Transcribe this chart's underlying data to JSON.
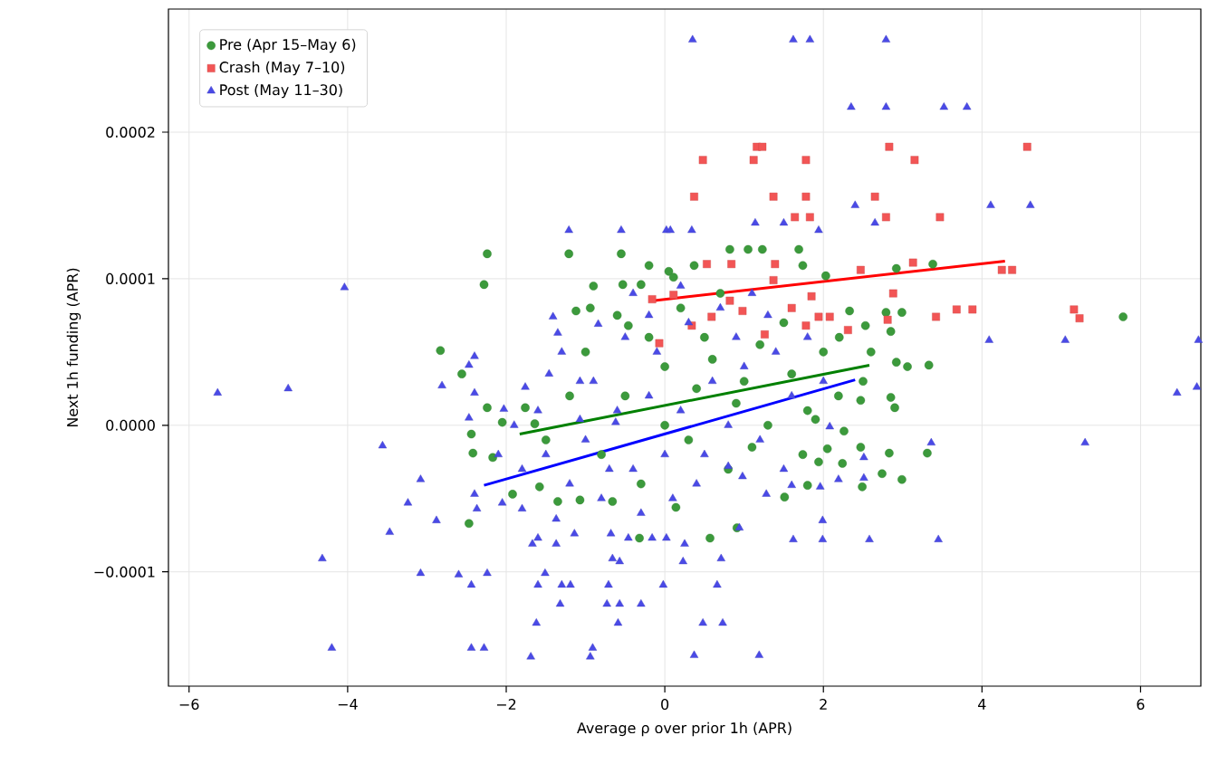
{
  "chart_data": {
    "type": "scatter",
    "xlabel": "Average ρ over prior 1h (APR)",
    "ylabel": "Next 1h funding (APR)",
    "xlim": [
      -6.26,
      6.76
    ],
    "ylim": [
      -0.000178,
      0.000284
    ],
    "xticks": [
      {
        "value": -6,
        "label": "−6"
      },
      {
        "value": -4,
        "label": "−4"
      },
      {
        "value": -2,
        "label": "−2"
      },
      {
        "value": 0,
        "label": "0"
      },
      {
        "value": 2,
        "label": "2"
      },
      {
        "value": 4,
        "label": "4"
      },
      {
        "value": 6,
        "label": "6"
      }
    ],
    "yticks": [
      {
        "value": -0.0001,
        "label": "−0.0001"
      },
      {
        "value": 0,
        "label": "0.0000"
      },
      {
        "value": 0.0001,
        "label": "0.0001"
      },
      {
        "value": 0.0002,
        "label": "0.0002"
      }
    ],
    "grid": true,
    "legend": "top left",
    "series": [
      {
        "name": "Pre (Apr 15–May 6)",
        "color": "#3c9a3c",
        "marker": "circle",
        "x": [
          -2.24,
          -1.21,
          -0.55,
          -2.28,
          -0.53,
          -0.3,
          -0.2,
          0.05,
          -2.83,
          -1.12,
          -0.94,
          -0.46,
          0.82,
          1.05,
          1.23,
          1.69,
          1.74,
          3.38,
          5.78,
          2.92,
          2.79,
          2.99,
          2.33,
          2.53,
          2.85,
          2.03,
          0.37,
          0.11,
          3.33,
          2.92,
          3.06,
          2.85,
          2.9,
          2.47,
          2.19,
          1.9,
          2.26,
          2.47,
          2.83,
          3.31,
          2.05,
          1.74,
          1.94,
          2.24,
          2.74,
          2.99,
          2.49,
          1.8,
          1.51,
          0.91,
          0.57,
          -2.56,
          -2.24,
          -2.44,
          -2.42,
          -2.17,
          -2.47,
          -1.92,
          -1.58,
          -1.35,
          -2.05,
          -1.76,
          -1.64,
          -1.07,
          -0.66,
          -0.32,
          0.14,
          -1,
          -0.5,
          0,
          0.5,
          1,
          1.5,
          2,
          2.5,
          -0.8,
          -0.3,
          0.3,
          0.8,
          1.3,
          1.8,
          0.2,
          0.7,
          1.2,
          -0.6,
          -1.2,
          0,
          0.4,
          1.6,
          2.2,
          -0.2,
          0.9,
          1.1,
          -1.5,
          0.6,
          2.6,
          -0.9
        ],
        "values": [
          0.000117,
          0.000117,
          0.000117,
          9.6e-05,
          9.6e-05,
          9.6e-05,
          0.000109,
          0.000105,
          5.1e-05,
          7.8e-05,
          8e-05,
          6.8e-05,
          0.00012,
          0.00012,
          0.00012,
          0.00012,
          0.000109,
          0.00011,
          7.4e-05,
          0.000107,
          7.7e-05,
          7.7e-05,
          7.8e-05,
          6.8e-05,
          6.4e-05,
          0.000102,
          0.000109,
          0.000101,
          4.1e-05,
          4.3e-05,
          4e-05,
          1.9e-05,
          1.2e-05,
          1.7e-05,
          2e-05,
          4e-06,
          -4e-06,
          -1.5e-05,
          -1.9e-05,
          -1.9e-05,
          -1.6e-05,
          -2e-05,
          -2.5e-05,
          -2.6e-05,
          -3.3e-05,
          -3.7e-05,
          -4.2e-05,
          -4.1e-05,
          -4.9e-05,
          -7e-05,
          -7.7e-05,
          3.5e-05,
          1.2e-05,
          -6e-06,
          -1.9e-05,
          -2.2e-05,
          -6.7e-05,
          -4.7e-05,
          -4.2e-05,
          -5.2e-05,
          2e-06,
          1.2e-05,
          1e-06,
          -5.1e-05,
          -5.2e-05,
          -7.7e-05,
          -5.6e-05,
          5e-05,
          2e-05,
          4e-05,
          6e-05,
          3e-05,
          7e-05,
          5e-05,
          3e-05,
          -2e-05,
          -4e-05,
          -1e-05,
          -3e-05,
          0,
          1e-05,
          8e-05,
          9e-05,
          5.5e-05,
          7.5e-05,
          2e-05,
          0,
          2.5e-05,
          3.5e-05,
          6e-05,
          6e-05,
          1.5e-05,
          -1.5e-05,
          -1e-05,
          4.5e-05,
          5e-05,
          9.5e-05
        ]
      },
      {
        "name": "Crash (May 7–10)",
        "color": "#f25555",
        "marker": "square",
        "x": [
          1.16,
          1.23,
          0.48,
          1.12,
          1.78,
          2.83,
          3.15,
          4.57,
          0.37,
          1.37,
          1.78,
          2.65,
          1.64,
          1.83,
          2.79,
          3.47,
          3.13,
          4.25,
          4.38,
          0.53,
          0.84,
          1.39,
          2.47,
          3.68,
          3.88,
          5.16,
          5.23,
          2.81,
          3.42,
          2.88,
          0.34,
          0.82,
          1.37,
          1.85,
          1.94,
          2.08,
          1.78,
          0.98,
          1.6,
          0.11,
          0.59,
          1.26,
          2.31,
          -0.16,
          -0.07
        ],
        "values": [
          0.00019,
          0.00019,
          0.000181,
          0.000181,
          0.000181,
          0.00019,
          0.000181,
          0.00019,
          0.000156,
          0.000156,
          0.000156,
          0.000156,
          0.000142,
          0.000142,
          0.000142,
          0.000142,
          0.000111,
          0.000106,
          0.000106,
          0.00011,
          0.00011,
          0.00011,
          0.000106,
          7.9e-05,
          7.9e-05,
          7.9e-05,
          7.3e-05,
          7.2e-05,
          7.4e-05,
          9e-05,
          6.8e-05,
          8.5e-05,
          9.9e-05,
          8.8e-05,
          7.4e-05,
          7.4e-05,
          6.8e-05,
          7.8e-05,
          8e-05,
          8.9e-05,
          7.4e-05,
          6.2e-05,
          6.5e-05,
          8.6e-05,
          5.6e-05
        ]
      },
      {
        "name": "Post (May 11–30)",
        "color": "#4a4ae6",
        "marker": "triangle",
        "x": [
          0.35,
          1.62,
          1.83,
          2.79,
          2.35,
          2.79,
          3.52,
          3.81,
          -1.21,
          -0.55,
          0.02,
          -4.04,
          2.4,
          4.11,
          4.61,
          1.14,
          1.5,
          1.94,
          2.65,
          0.34,
          0.07,
          4.09,
          5.05,
          6.73,
          6.46,
          6.71,
          5.3,
          3.36,
          2.51,
          1.96,
          2.19,
          2.51,
          2.08,
          1.62,
          1.99,
          2.58,
          3.45,
          1.99,
          0.71,
          0.25,
          0.66,
          0.48,
          0.73,
          0.37,
          1.19,
          0.94,
          1.6,
          1.28,
          0.98,
          0.8,
          -5.64,
          -4.75,
          -3.56,
          -3.08,
          -3.24,
          -3.47,
          -2.88,
          -4.32,
          -3.08,
          -2.6,
          -2.44,
          -2.24,
          -4.2,
          -2.44,
          -2.28,
          -1.69,
          -0.91,
          -0.94,
          -1.62,
          -1.6,
          -1.3,
          -1.19,
          -1.32,
          -0.71,
          -0.73,
          -0.57,
          -0.59,
          -0.3,
          -0.02,
          -0.66,
          -1.51,
          -1.67,
          -1.37,
          -1.14,
          -1.6,
          -2.37,
          -2.4,
          -2.05,
          -1.8,
          -1.37,
          -0.68,
          -0.46,
          -0.16,
          0.02,
          -0.57,
          0.23,
          -2.4,
          -2.81,
          -2.47,
          -2.47,
          -2.03,
          -1.76,
          -1.46,
          -1.07,
          -1.07,
          -0.62,
          -1.8,
          -1.5,
          -1.2,
          -1,
          -0.8,
          -0.6,
          -0.4,
          -0.2,
          0,
          0.2,
          0.4,
          0.6,
          0.8,
          1,
          1.2,
          1.4,
          1.6,
          1.8,
          -1.6,
          -1.3,
          -0.9,
          -0.5,
          -0.1,
          0.3,
          0.7,
          1.1,
          -0.3,
          0.1,
          0.5,
          -0.7,
          1.5,
          0.9,
          -2.1,
          -1.9,
          0.2,
          -0.4,
          1.3,
          2,
          -1.41,
          -1.35,
          -0.84,
          -0.2,
          -2.4
        ],
        "values": [
          0.000263,
          0.000263,
          0.000263,
          0.000263,
          0.000217,
          0.000217,
          0.000217,
          0.000217,
          0.000133,
          0.000133,
          0.000133,
          9.4e-05,
          0.00015,
          0.00015,
          0.00015,
          0.000138,
          0.000138,
          0.000133,
          0.000138,
          0.000133,
          0.000133,
          5.8e-05,
          5.8e-05,
          5.8e-05,
          2.2e-05,
          2.6e-05,
          -1.2e-05,
          -1.2e-05,
          -2.2e-05,
          -4.2e-05,
          -3.7e-05,
          -3.6e-05,
          -1e-06,
          -7.8e-05,
          -7.8e-05,
          -7.8e-05,
          -7.8e-05,
          -6.5e-05,
          -9.1e-05,
          -8.1e-05,
          -0.000109,
          -0.000135,
          -0.000135,
          -0.000157,
          -0.000157,
          -7e-05,
          -4.1e-05,
          -4.7e-05,
          -3.5e-05,
          -2.8e-05,
          2.2e-05,
          2.5e-05,
          -1.4e-05,
          -3.7e-05,
          -5.3e-05,
          -7.3e-05,
          -6.5e-05,
          -9.1e-05,
          -0.000101,
          -0.000102,
          -0.000109,
          -0.000101,
          -0.000152,
          -0.000152,
          -0.000152,
          -0.000158,
          -0.000152,
          -0.000158,
          -0.000135,
          -0.000109,
          -0.000109,
          -0.000109,
          -0.000122,
          -0.000109,
          -0.000122,
          -0.000122,
          -0.000135,
          -0.000122,
          -0.000109,
          -9.1e-05,
          -0.000101,
          -8.1e-05,
          -8.1e-05,
          -7.4e-05,
          -7.7e-05,
          -5.7e-05,
          -4.7e-05,
          -5.3e-05,
          -5.7e-05,
          -6.4e-05,
          -7.4e-05,
          -7.7e-05,
          -7.7e-05,
          -7.7e-05,
          -9.3e-05,
          -9.3e-05,
          2.2e-05,
          2.7e-05,
          4.1e-05,
          5e-06,
          1.1e-05,
          2.6e-05,
          3.5e-05,
          3e-05,
          4e-06,
          2e-06,
          -3e-05,
          -2e-05,
          -4e-05,
          -1e-05,
          -5e-05,
          1e-05,
          -3e-05,
          2e-05,
          -2e-05,
          1e-05,
          -4e-05,
          3e-05,
          0,
          4e-05,
          -1e-05,
          5e-05,
          2e-05,
          6e-05,
          1e-05,
          5e-05,
          3e-05,
          6e-05,
          5e-05,
          7e-05,
          8e-05,
          9e-05,
          -6e-05,
          -5e-05,
          -2e-05,
          -3e-05,
          -3e-05,
          6e-05,
          -2e-05,
          0,
          9.5e-05,
          9e-05,
          7.5e-05,
          3e-05,
          7.4e-05,
          6.3e-05,
          6.9e-05,
          7.5e-05,
          4.7e-05
        ]
      },
      {
        "type": "line",
        "color": "#008000",
        "x": [
          -1.83,
          2.58
        ],
        "values": [
          -6e-06,
          4.1e-05
        ]
      },
      {
        "type": "line",
        "color": "#ff0000",
        "x": [
          -0.15,
          4.29
        ],
        "values": [
          8.5e-05,
          0.000112
        ]
      },
      {
        "type": "line",
        "color": "#0000ff",
        "x": [
          -2.28,
          2.4
        ],
        "values": [
          -4.1e-05,
          3.1e-05
        ]
      }
    ]
  }
}
